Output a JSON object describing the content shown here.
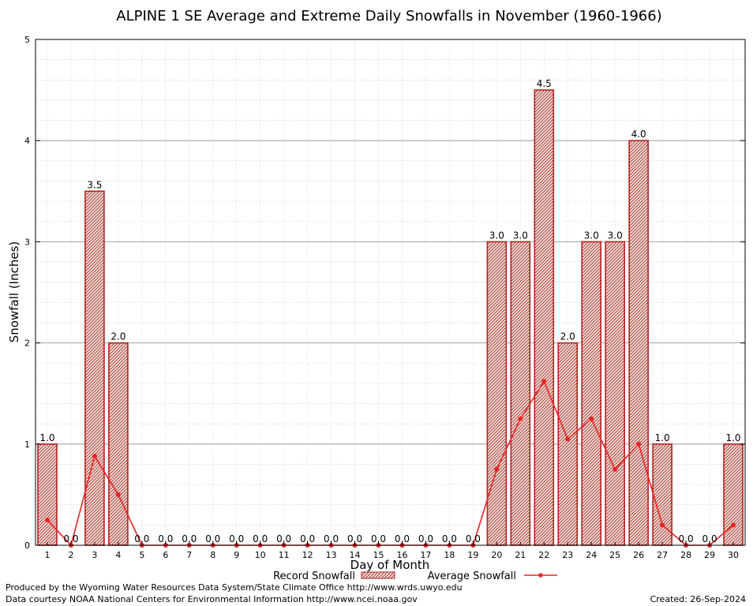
{
  "chart_data": {
    "type": "bar",
    "title": "ALPINE 1 SE Average and Extreme Daily Snowfalls in November (1960-1966)",
    "xlabel": "Day of Month",
    "ylabel": "Snowfall (Inches)",
    "ylim": [
      0,
      5
    ],
    "yticks": [
      "0",
      "1",
      "2",
      "3",
      "4",
      "5"
    ],
    "categories": [
      "1",
      "2",
      "3",
      "4",
      "5",
      "6",
      "7",
      "8",
      "9",
      "10",
      "11",
      "12",
      "13",
      "14",
      "15",
      "16",
      "17",
      "18",
      "19",
      "20",
      "21",
      "22",
      "23",
      "24",
      "25",
      "26",
      "27",
      "28",
      "29",
      "30"
    ],
    "series": [
      {
        "name": "Record Snowfall",
        "type": "bar",
        "values": [
          1.0,
          0.0,
          3.5,
          2.0,
          0.0,
          0.0,
          0.0,
          0.0,
          0.0,
          0.0,
          0.0,
          0.0,
          0.0,
          0.0,
          0.0,
          0.0,
          0.0,
          0.0,
          0.0,
          3.0,
          3.0,
          4.5,
          2.0,
          3.0,
          3.0,
          4.0,
          1.0,
          0.0,
          0.0,
          1.0
        ],
        "labels": [
          "1.0",
          "0.0",
          "3.5",
          "2.0",
          "0.0",
          "0.0",
          "0.0",
          "0.0",
          "0.0",
          "0.0",
          "0.0",
          "0.0",
          "0.0",
          "0.0",
          "0.0",
          "0.0",
          "0.0",
          "0.0",
          "0.0",
          "3.0",
          "3.0",
          "4.5",
          "2.0",
          "3.0",
          "3.0",
          "4.0",
          "1.0",
          "0.0",
          "0.0",
          "1.0"
        ],
        "color": "#b22222"
      },
      {
        "name": "Average Snowfall",
        "type": "line",
        "values": [
          0.25,
          0.0,
          0.88,
          0.5,
          0.0,
          0.0,
          0.0,
          0.0,
          0.0,
          0.0,
          0.0,
          0.0,
          0.0,
          0.0,
          0.0,
          0.0,
          0.0,
          0.0,
          0.0,
          0.75,
          1.25,
          1.62,
          1.05,
          1.25,
          0.75,
          1.0,
          0.2,
          0.0,
          0.0,
          0.2
        ],
        "color": "#ee2222"
      }
    ],
    "grid": true,
    "legend": "bottom-center"
  },
  "footer": {
    "left_line1": "Produced by the Wyoming Water Resources Data System/State Climate Office http://www.wrds.uwyo.edu",
    "left_line2": "Data courtesy NOAA National Centers for Environmental Information http://www.ncei.noaa.gov",
    "right": "Created:  26-Sep-2024"
  }
}
